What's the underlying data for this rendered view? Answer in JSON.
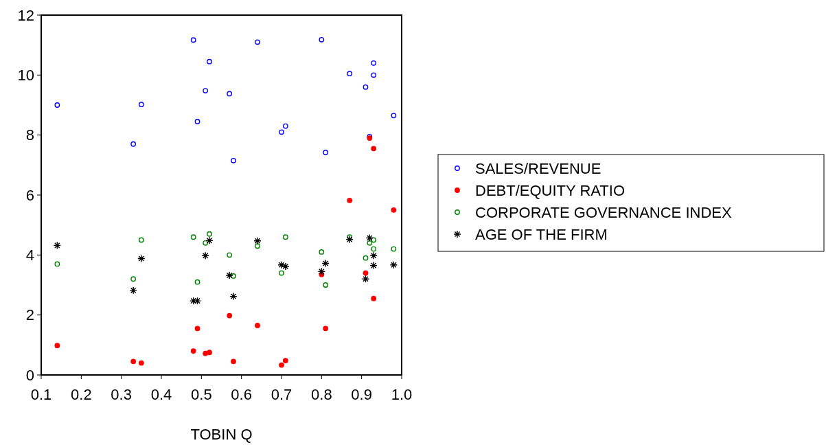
{
  "chart_data": {
    "type": "scatter",
    "xlabel": "TOBIN Q",
    "xlim": [
      0.1,
      1.0
    ],
    "ylim": [
      0,
      12
    ],
    "xticks": [
      {
        "value": 0.1,
        "label": "0.1"
      },
      {
        "value": 0.2,
        "label": "0.2"
      },
      {
        "value": 0.3,
        "label": "0.3"
      },
      {
        "value": 0.4,
        "label": "0.4"
      },
      {
        "value": 0.5,
        "label": "0.5"
      },
      {
        "value": 0.6,
        "label": "0.6"
      },
      {
        "value": 0.7,
        "label": "0.7"
      },
      {
        "value": 0.8,
        "label": "0.8"
      },
      {
        "value": 0.9,
        "label": "0.9"
      },
      {
        "value": 1.0,
        "label": "1.0"
      }
    ],
    "yticks": [
      0,
      2,
      4,
      6,
      8,
      10,
      12
    ],
    "grid": false,
    "legend": "right",
    "x": [
      0.14,
      0.33,
      0.35,
      0.48,
      0.49,
      0.51,
      0.52,
      0.57,
      0.58,
      0.64,
      0.7,
      0.71,
      0.8,
      0.81,
      0.87,
      0.91,
      0.92,
      0.93,
      0.93,
      0.98
    ],
    "series": [
      {
        "name": "SALES/REVENUE",
        "color": "#0000ff",
        "marker": "circle",
        "values": [
          9.0,
          7.7,
          9.02,
          11.17,
          8.45,
          9.48,
          10.45,
          9.38,
          7.15,
          11.1,
          8.1,
          8.3,
          11.18,
          7.42,
          10.05,
          9.6,
          7.95,
          10.4,
          10.0,
          8.65
        ]
      },
      {
        "name": "DEBT/EQUITY RATIO",
        "color": "#ff0000",
        "marker": "circle",
        "values": [
          0.98,
          0.45,
          0.4,
          0.8,
          1.55,
          0.72,
          0.75,
          1.98,
          0.45,
          1.65,
          0.33,
          0.48,
          3.35,
          1.55,
          5.82,
          3.4,
          7.9,
          7.55,
          2.55,
          5.5
        ]
      },
      {
        "name": "CORPORATE GOVERNANCE INDEX",
        "color": "#008000",
        "marker": "circle",
        "values": [
          3.7,
          3.2,
          4.5,
          4.6,
          3.1,
          4.4,
          4.7,
          4.0,
          3.3,
          4.3,
          3.4,
          4.6,
          4.1,
          3.0,
          4.6,
          3.9,
          4.4,
          4.5,
          4.2,
          4.2
        ]
      },
      {
        "name": "AGE OF THE FIRM",
        "color": "#000000",
        "marker": "cross",
        "values": [
          4.32,
          2.82,
          3.88,
          2.47,
          2.47,
          3.98,
          4.48,
          3.32,
          2.62,
          4.47,
          3.67,
          3.62,
          3.45,
          3.72,
          4.52,
          3.2,
          4.57,
          3.98,
          3.65,
          3.67
        ]
      }
    ]
  }
}
